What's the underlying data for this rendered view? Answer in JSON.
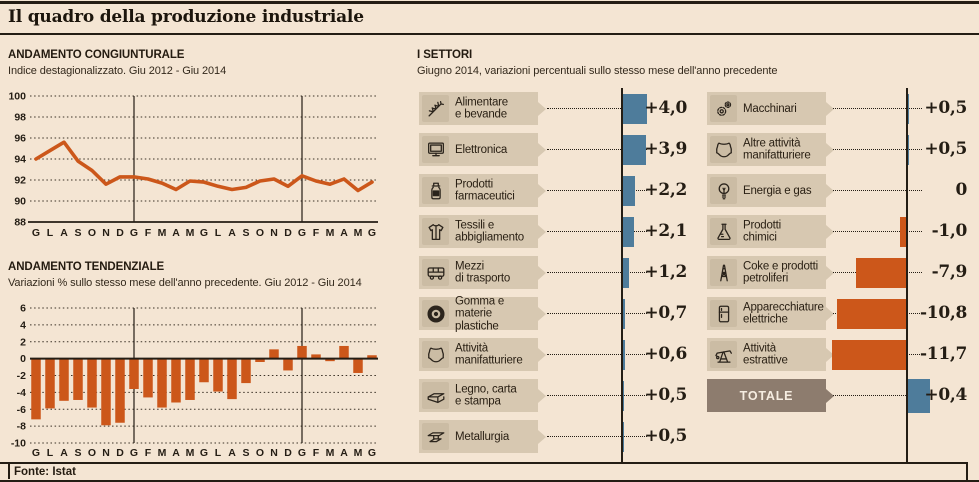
{
  "title": "Il quadro della produzione industriale",
  "footer": {
    "source": "Fonte: Istat"
  },
  "colors": {
    "background": "#f4e5d3",
    "orange": "#cc571a",
    "blue": "#4e7c9b",
    "label_box": "#d7c8b1",
    "icon_tile": "#cbbca4",
    "totale_box": "#8d7c6e",
    "dark": "#241d14"
  },
  "congiunturale": {
    "heading": "ANDAMENTO CONGIUNTURALE",
    "subtitle": "Indice destagionalizzato. Giu 2012 - Giu 2014"
  },
  "tendenziale": {
    "heading": "ANDAMENTO TENDENZIALE",
    "subtitle": "Variazioni % sullo stesso mese dell'anno precedente. Giu 2012 - Giu 2014"
  },
  "settori": {
    "heading": "I SETTORI",
    "subtitle": "Giugno 2014, variazioni percentuali sullo stesso mese dell'anno precedente",
    "left_rows": [
      {
        "icon": "wheat-icon",
        "label": "Alimentare\ne bevande",
        "value": "+4,0",
        "num": 4.0
      },
      {
        "icon": "monitor-icon",
        "label": "Elettronica",
        "value": "+3,9",
        "num": 3.9
      },
      {
        "icon": "pill-bottle-icon",
        "label": "Prodotti\nfarmaceutici",
        "value": "+2,2",
        "num": 2.2
      },
      {
        "icon": "jacket-icon",
        "label": "Tessili e\nabbigliamento",
        "value": "+2,1",
        "num": 2.1
      },
      {
        "icon": "bus-icon",
        "label": "Mezzi\ndi trasporto",
        "value": "+1,2",
        "num": 1.2
      },
      {
        "icon": "tire-icon",
        "label": "Gomma e materie\nplastiche",
        "value": "+0,7",
        "num": 0.7
      },
      {
        "icon": "leather-hide-icon",
        "label": "Attività\nmanifatturiere",
        "value": "+0,6",
        "num": 0.6
      },
      {
        "icon": "paper-stack-icon",
        "label": "Legno, carta\ne stampa",
        "value": "+0,5",
        "num": 0.5
      },
      {
        "icon": "steel-beam-icon",
        "label": "Metallurgia",
        "value": "+0,5",
        "num": 0.5
      }
    ],
    "right_rows": [
      {
        "icon": "gears-icon",
        "label": "Macchinari",
        "value": "+0,5",
        "num": 0.5
      },
      {
        "icon": "leather-hide-icon",
        "label": "Altre attività\nmanifatturiere",
        "value": "+0,5",
        "num": 0.5
      },
      {
        "icon": "lightbulb-icon",
        "label": "Energia e gas",
        "value": "0",
        "num": 0
      },
      {
        "icon": "flask-icon",
        "label": "Prodotti\nchimici",
        "value": "-1,0",
        "num": -1.0
      },
      {
        "icon": "oil-derrick-icon",
        "label": "Coke e prodotti\npetroliferi",
        "value": "-7,9",
        "num": -7.9
      },
      {
        "icon": "fridge-icon",
        "label": "Apparecchiature\nelettriche",
        "value": "-10,8",
        "num": -10.8
      },
      {
        "icon": "oil-pump-icon",
        "label": "Attività\nestrattive",
        "value": "-11,7",
        "num": -11.7
      },
      {
        "icon": null,
        "label": "TOTALE",
        "value": "+0,4",
        "num": 0.4,
        "is_totale": true
      }
    ]
  },
  "chart_data": [
    {
      "type": "line",
      "title": "ANDAMENTO CONGIUNTURALE",
      "subtitle": "Indice destagionalizzato. Giu 2012 - Giu 2014",
      "x": [
        "G",
        "L",
        "A",
        "S",
        "O",
        "N",
        "D",
        "G",
        "F",
        "M",
        "A",
        "M",
        "G",
        "L",
        "A",
        "S",
        "O",
        "N",
        "D",
        "G",
        "F",
        "M",
        "A",
        "M",
        "G"
      ],
      "values": [
        94.0,
        94.8,
        95.6,
        93.8,
        92.9,
        91.6,
        92.3,
        92.3,
        92.1,
        91.7,
        91.1,
        91.9,
        91.8,
        91.4,
        91.1,
        91.3,
        91.9,
        92.1,
        91.4,
        92.4,
        91.9,
        91.6,
        92.1,
        91.0,
        91.8
      ],
      "ylim": [
        88,
        100
      ],
      "yticks": [
        100,
        98,
        96,
        94,
        92,
        90,
        88
      ],
      "year_dividers_at_index": [
        7,
        19
      ],
      "grid": "dotted",
      "line_color": "#cc571a"
    },
    {
      "type": "bar",
      "title": "ANDAMENTO TENDENZIALE",
      "subtitle": "Variazioni % sullo stesso mese dell'anno precedente. Giu 2012 - Giu 2014",
      "x": [
        "G",
        "L",
        "A",
        "S",
        "O",
        "N",
        "D",
        "G",
        "F",
        "M",
        "A",
        "M",
        "G",
        "L",
        "A",
        "S",
        "O",
        "N",
        "D",
        "G",
        "F",
        "M",
        "A",
        "M",
        "G"
      ],
      "values": [
        -7.2,
        -5.9,
        -5.0,
        -4.9,
        -5.8,
        -7.9,
        -7.6,
        -3.6,
        -4.6,
        -5.8,
        -5.2,
        -4.9,
        -2.8,
        -3.9,
        -4.8,
        -2.9,
        -0.4,
        1.1,
        -1.4,
        1.5,
        0.5,
        -0.3,
        1.5,
        -1.7,
        0.4
      ],
      "ylim": [
        -10,
        6
      ],
      "yticks": [
        6,
        4,
        2,
        0,
        -2,
        -4,
        -6,
        -8,
        -10
      ],
      "year_dividers_at_index": [
        7,
        19
      ],
      "grid": "dotted",
      "bar_color": "#cc571a"
    },
    {
      "type": "bar",
      "orientation": "horizontal",
      "title": "I SETTORI",
      "subtitle": "Giugno 2014, variazioni percentuali sullo stesso mese dell'anno precedente",
      "categories": [
        "Alimentare e bevande",
        "Elettronica",
        "Prodotti farmaceutici",
        "Tessili e abbigliamento",
        "Mezzi di trasporto",
        "Gomma e materie plastiche",
        "Attività manifatturiere",
        "Legno, carta e stampa",
        "Metallurgia",
        "Macchinari",
        "Altre attività manifatturiere",
        "Energia e gas",
        "Prodotti chimici",
        "Coke e prodotti petroliferi",
        "Apparecchiature elettriche",
        "Attività estrattive",
        "TOTALE"
      ],
      "values": [
        4.0,
        3.9,
        2.2,
        2.1,
        1.2,
        0.7,
        0.6,
        0.5,
        0.5,
        0.5,
        0.5,
        0,
        -1.0,
        -7.9,
        -10.8,
        -11.7,
        0.4
      ],
      "positive_color": "#4e7c9b",
      "negative_color": "#cc571a"
    }
  ]
}
